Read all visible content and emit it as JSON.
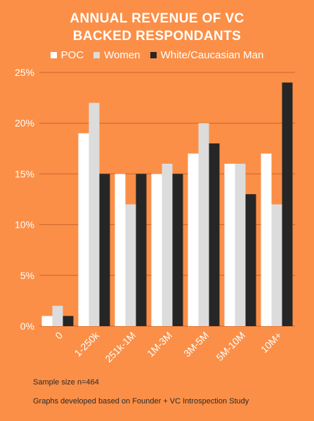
{
  "title_line1": "ANNUAL REVENUE OF VC",
  "title_line2": "BACKED RESPONDANTS",
  "footnote1": "Sample size n=464",
  "footnote2": "Graphs developed based on Founder + VC Introspection Study",
  "colors": {
    "background": "#FB8F47",
    "gridline": "#C9642C",
    "axis_text": "#ffffff"
  },
  "chart_data": {
    "type": "bar",
    "title": "ANNUAL REVENUE OF VC BACKED RESPONDANTS",
    "categories": [
      "0",
      "1-250k",
      "251k-1M",
      "1M-3M",
      "3M-5M",
      "5M-10M",
      "10M+"
    ],
    "series": [
      {
        "name": "POC",
        "color": "#FFFFFF",
        "values": [
          1,
          19,
          15,
          15,
          17,
          16,
          17
        ]
      },
      {
        "name": "Women",
        "color": "#DCDCDC",
        "values": [
          2,
          22,
          12,
          16,
          20,
          16,
          12
        ]
      },
      {
        "name": "White/Caucasian Man",
        "color": "#262626",
        "values": [
          1,
          15,
          15,
          15,
          18,
          13,
          24
        ]
      }
    ],
    "yticks": [
      "0%",
      "5%",
      "10%",
      "15%",
      "20%",
      "25%"
    ],
    "ylim": [
      0,
      25
    ],
    "grid": true,
    "legend_position": "top"
  }
}
